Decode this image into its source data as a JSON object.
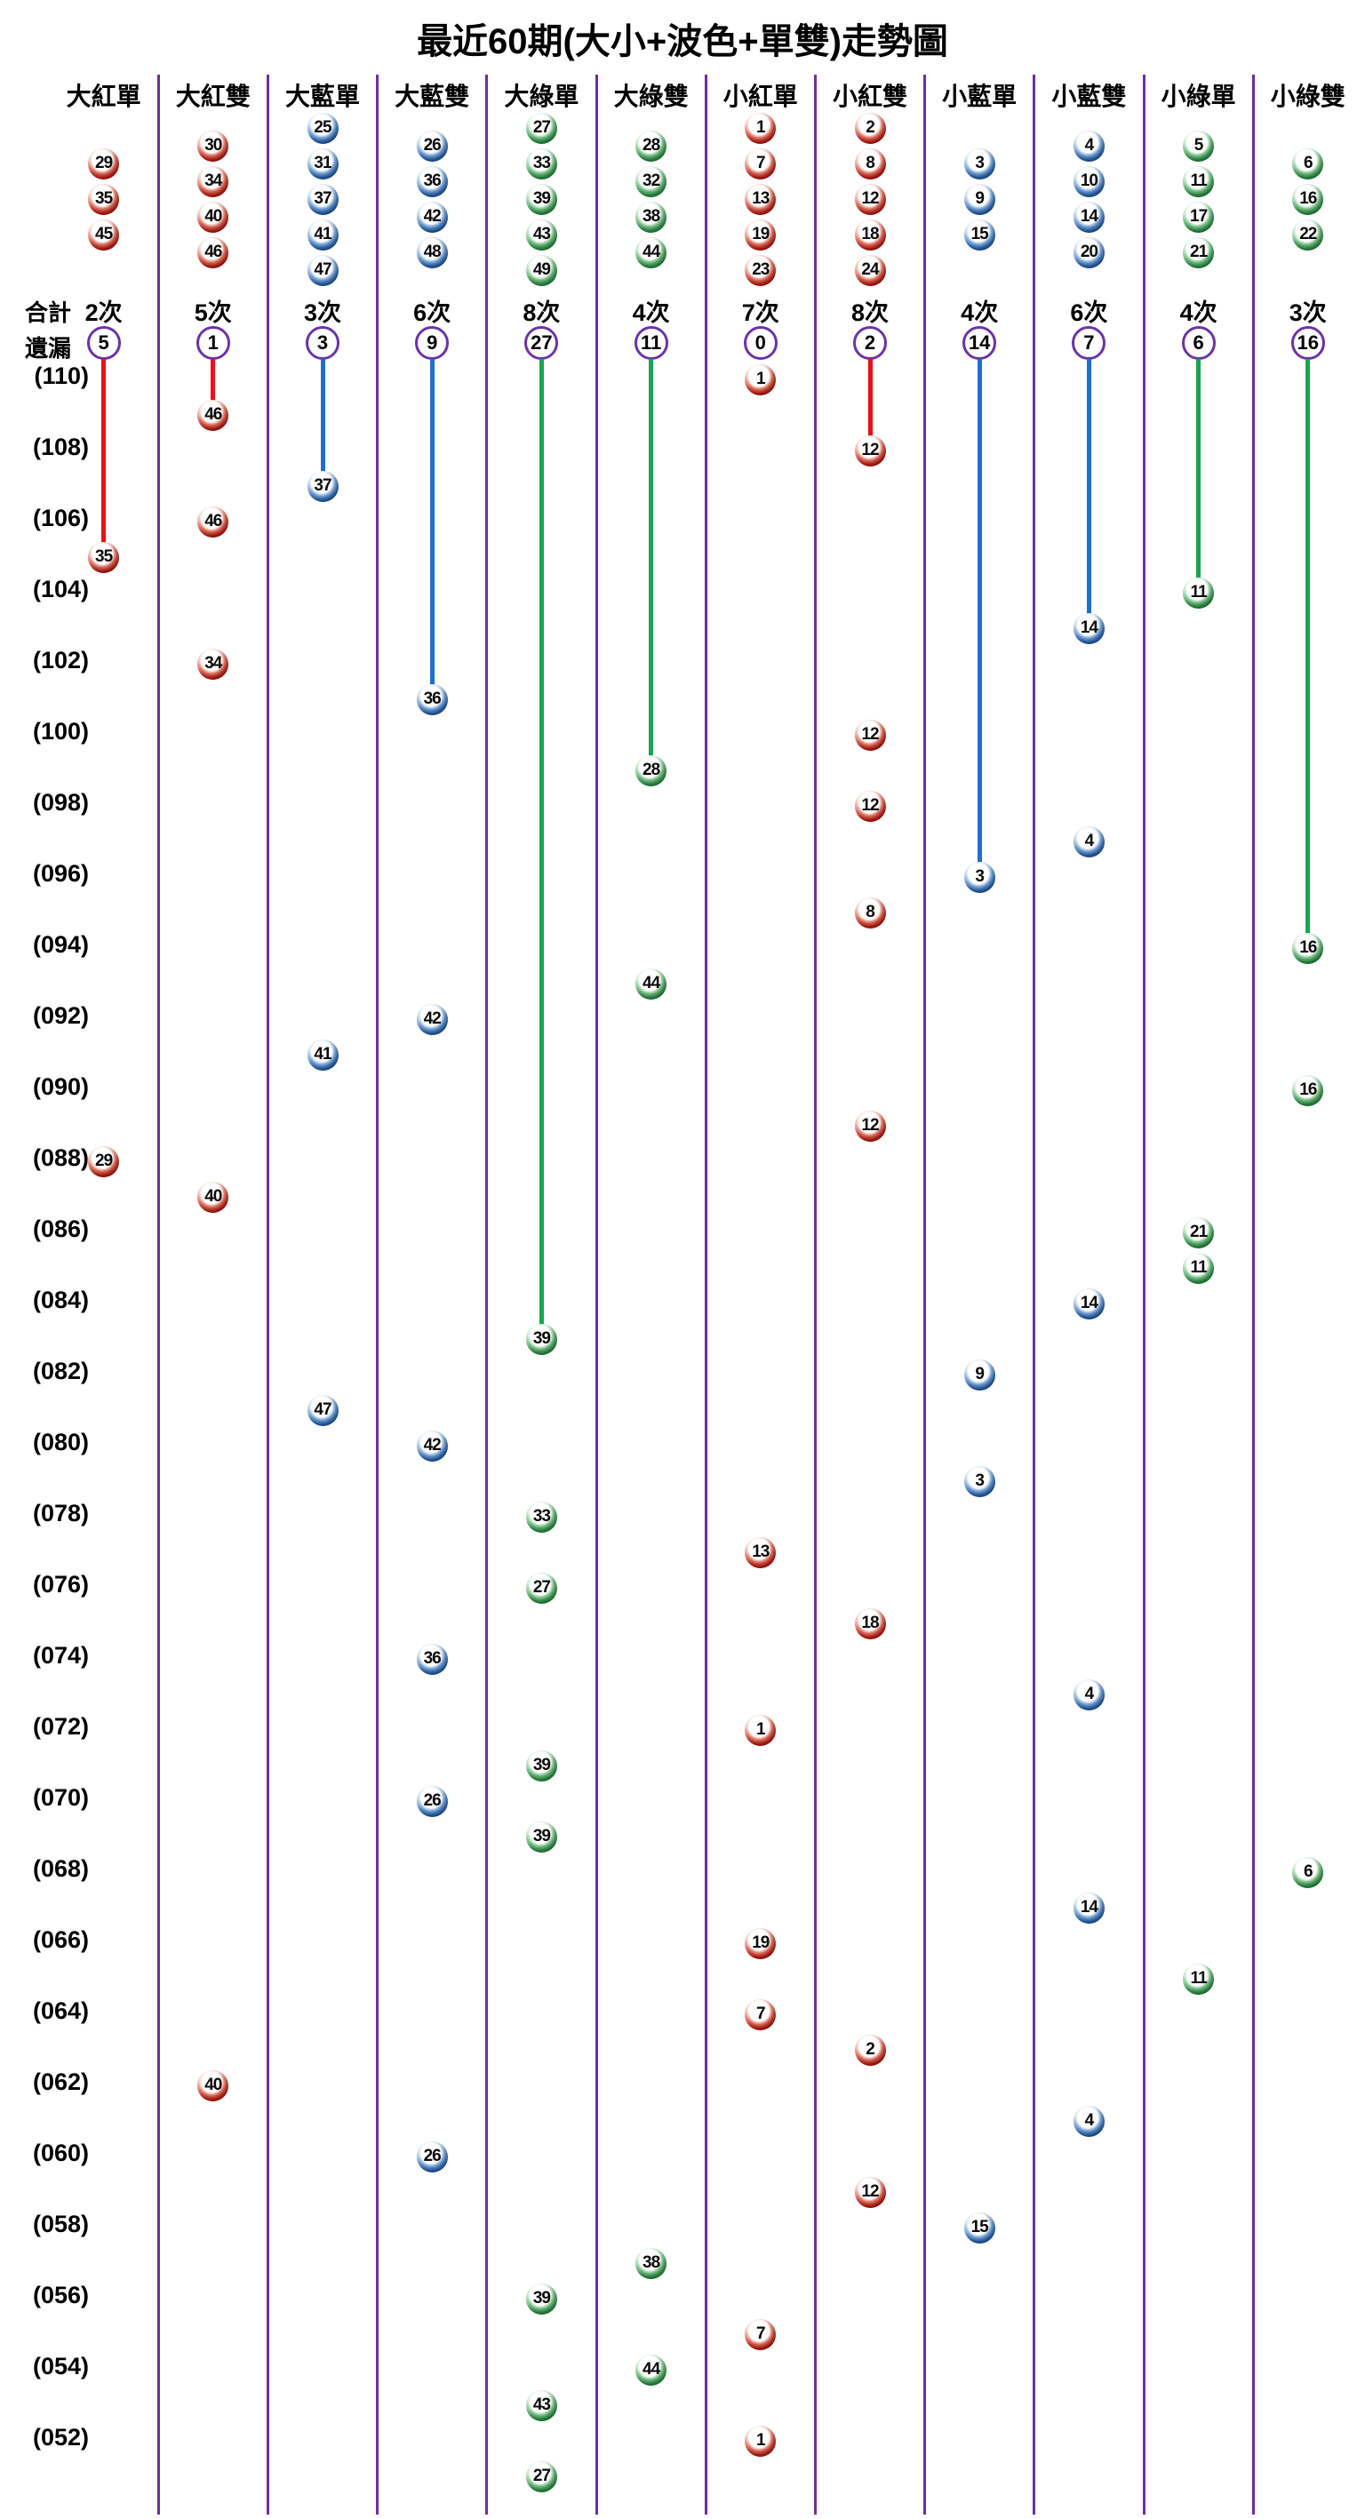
{
  "title": "最近60期(大小+波色+單雙)走勢圖",
  "left_labels": {
    "total": "合計",
    "miss": "遺漏"
  },
  "colors": {
    "separator_purple": "#6e2fa0",
    "miss_circle_purple": "#6d32a8",
    "red_line": "#ec1016",
    "blue_line": "#1e6fd0",
    "green_line": "#17a750",
    "red_ball": "#cd1a12",
    "blue_ball": "#2566bb",
    "green_ball": "#2a9a47"
  },
  "chart_data": {
    "type": "scatter",
    "title": "最近60期(大小+波色+單雙)走勢圖",
    "legend_position": "none",
    "grid": "vertical-separators",
    "columns": [
      {
        "label": "大紅單",
        "color_group": "red",
        "members": [
          "29",
          "35",
          "45"
        ],
        "total": 2,
        "total_label": "2次",
        "miss": 5
      },
      {
        "label": "大紅雙",
        "color_group": "red",
        "members": [
          "30",
          "34",
          "40",
          "46"
        ],
        "total": 5,
        "total_label": "5次",
        "miss": 1
      },
      {
        "label": "大藍單",
        "color_group": "blue",
        "members": [
          "25",
          "31",
          "37",
          "41",
          "47"
        ],
        "total": 3,
        "total_label": "3次",
        "miss": 3
      },
      {
        "label": "大藍雙",
        "color_group": "blue",
        "members": [
          "26",
          "36",
          "42",
          "48"
        ],
        "total": 6,
        "total_label": "6次",
        "miss": 9
      },
      {
        "label": "大綠單",
        "color_group": "green",
        "members": [
          "27",
          "33",
          "39",
          "43",
          "49"
        ],
        "total": 8,
        "total_label": "8次",
        "miss": 27
      },
      {
        "label": "大綠雙",
        "color_group": "green",
        "members": [
          "28",
          "32",
          "38",
          "44"
        ],
        "total": 4,
        "total_label": "4次",
        "miss": 11
      },
      {
        "label": "小紅單",
        "color_group": "red",
        "members": [
          "1",
          "7",
          "13",
          "19",
          "23"
        ],
        "total": 7,
        "total_label": "7次",
        "miss": 0
      },
      {
        "label": "小紅雙",
        "color_group": "red",
        "members": [
          "2",
          "8",
          "12",
          "18",
          "24"
        ],
        "total": 8,
        "total_label": "8次",
        "miss": 2
      },
      {
        "label": "小藍單",
        "color_group": "blue",
        "members": [
          "3",
          "9",
          "15"
        ],
        "total": 4,
        "total_label": "4次",
        "miss": 14
      },
      {
        "label": "小藍雙",
        "color_group": "blue",
        "members": [
          "4",
          "10",
          "14",
          "20"
        ],
        "total": 6,
        "total_label": "6次",
        "miss": 7
      },
      {
        "label": "小綠單",
        "color_group": "green",
        "members": [
          "5",
          "11",
          "17",
          "21"
        ],
        "total": 4,
        "total_label": "4次",
        "miss": 6
      },
      {
        "label": "小綠雙",
        "color_group": "green",
        "members": [
          "6",
          "16",
          "22"
        ],
        "total": 3,
        "total_label": "3次",
        "miss": 16
      }
    ],
    "period_axis": {
      "top_period": 110,
      "bottom_period": 51,
      "label_step": 2,
      "labels": [
        "(110)",
        "(108)",
        "(106)",
        "(104)",
        "(102)",
        "(100)",
        "(098)",
        "(096)",
        "(094)",
        "(092)",
        "(090)",
        "(088)",
        "(086)",
        "(084)",
        "(082)",
        "(080)",
        "(078)",
        "(076)",
        "(074)",
        "(072)",
        "(070)",
        "(068)",
        "(066)",
        "(064)",
        "(062)",
        "(060)",
        "(058)",
        "(056)",
        "(054)",
        "(052)"
      ]
    },
    "points": [
      {
        "p": 110,
        "c": 6,
        "n": "1"
      },
      {
        "p": 109,
        "c": 1,
        "n": "46"
      },
      {
        "p": 108,
        "c": 7,
        "n": "12"
      },
      {
        "p": 107,
        "c": 2,
        "n": "37"
      },
      {
        "p": 106,
        "c": 1,
        "n": "46"
      },
      {
        "p": 105,
        "c": 0,
        "n": "35"
      },
      {
        "p": 104,
        "c": 10,
        "n": "11"
      },
      {
        "p": 103,
        "c": 9,
        "n": "14"
      },
      {
        "p": 102,
        "c": 1,
        "n": "34"
      },
      {
        "p": 101,
        "c": 3,
        "n": "36"
      },
      {
        "p": 100,
        "c": 7,
        "n": "12"
      },
      {
        "p": 99,
        "c": 5,
        "n": "28"
      },
      {
        "p": 98,
        "c": 7,
        "n": "12"
      },
      {
        "p": 97,
        "c": 9,
        "n": "4"
      },
      {
        "p": 96,
        "c": 8,
        "n": "3"
      },
      {
        "p": 95,
        "c": 7,
        "n": "8"
      },
      {
        "p": 94,
        "c": 11,
        "n": "16"
      },
      {
        "p": 93,
        "c": 5,
        "n": "44"
      },
      {
        "p": 92,
        "c": 3,
        "n": "42"
      },
      {
        "p": 91,
        "c": 2,
        "n": "41"
      },
      {
        "p": 90,
        "c": 11,
        "n": "16"
      },
      {
        "p": 89,
        "c": 7,
        "n": "12"
      },
      {
        "p": 88,
        "c": 0,
        "n": "29"
      },
      {
        "p": 87,
        "c": 1,
        "n": "40"
      },
      {
        "p": 86,
        "c": 10,
        "n": "21"
      },
      {
        "p": 85,
        "c": 10,
        "n": "11"
      },
      {
        "p": 84,
        "c": 9,
        "n": "14"
      },
      {
        "p": 83,
        "c": 4,
        "n": "39"
      },
      {
        "p": 82,
        "c": 8,
        "n": "9"
      },
      {
        "p": 81,
        "c": 2,
        "n": "47"
      },
      {
        "p": 80,
        "c": 3,
        "n": "42"
      },
      {
        "p": 79,
        "c": 8,
        "n": "3"
      },
      {
        "p": 78,
        "c": 4,
        "n": "33"
      },
      {
        "p": 77,
        "c": 6,
        "n": "13"
      },
      {
        "p": 76,
        "c": 4,
        "n": "27"
      },
      {
        "p": 75,
        "c": 7,
        "n": "18"
      },
      {
        "p": 74,
        "c": 3,
        "n": "36"
      },
      {
        "p": 73,
        "c": 9,
        "n": "4"
      },
      {
        "p": 72,
        "c": 6,
        "n": "1"
      },
      {
        "p": 71,
        "c": 4,
        "n": "39"
      },
      {
        "p": 70,
        "c": 3,
        "n": "26"
      },
      {
        "p": 69,
        "c": 4,
        "n": "39"
      },
      {
        "p": 68,
        "c": 11,
        "n": "6"
      },
      {
        "p": 67,
        "c": 9,
        "n": "14"
      },
      {
        "p": 66,
        "c": 6,
        "n": "19"
      },
      {
        "p": 65,
        "c": 10,
        "n": "11"
      },
      {
        "p": 64,
        "c": 6,
        "n": "7"
      },
      {
        "p": 63,
        "c": 7,
        "n": "2"
      },
      {
        "p": 62,
        "c": 1,
        "n": "40"
      },
      {
        "p": 61,
        "c": 9,
        "n": "4"
      },
      {
        "p": 60,
        "c": 3,
        "n": "26"
      },
      {
        "p": 59,
        "c": 7,
        "n": "12"
      },
      {
        "p": 58,
        "c": 8,
        "n": "15"
      },
      {
        "p": 57,
        "c": 5,
        "n": "38"
      },
      {
        "p": 56,
        "c": 4,
        "n": "39"
      },
      {
        "p": 55,
        "c": 6,
        "n": "7"
      },
      {
        "p": 54,
        "c": 5,
        "n": "44"
      },
      {
        "p": 53,
        "c": 4,
        "n": "43"
      },
      {
        "p": 52,
        "c": 6,
        "n": "1"
      },
      {
        "p": 51,
        "c": 4,
        "n": "27"
      }
    ]
  }
}
